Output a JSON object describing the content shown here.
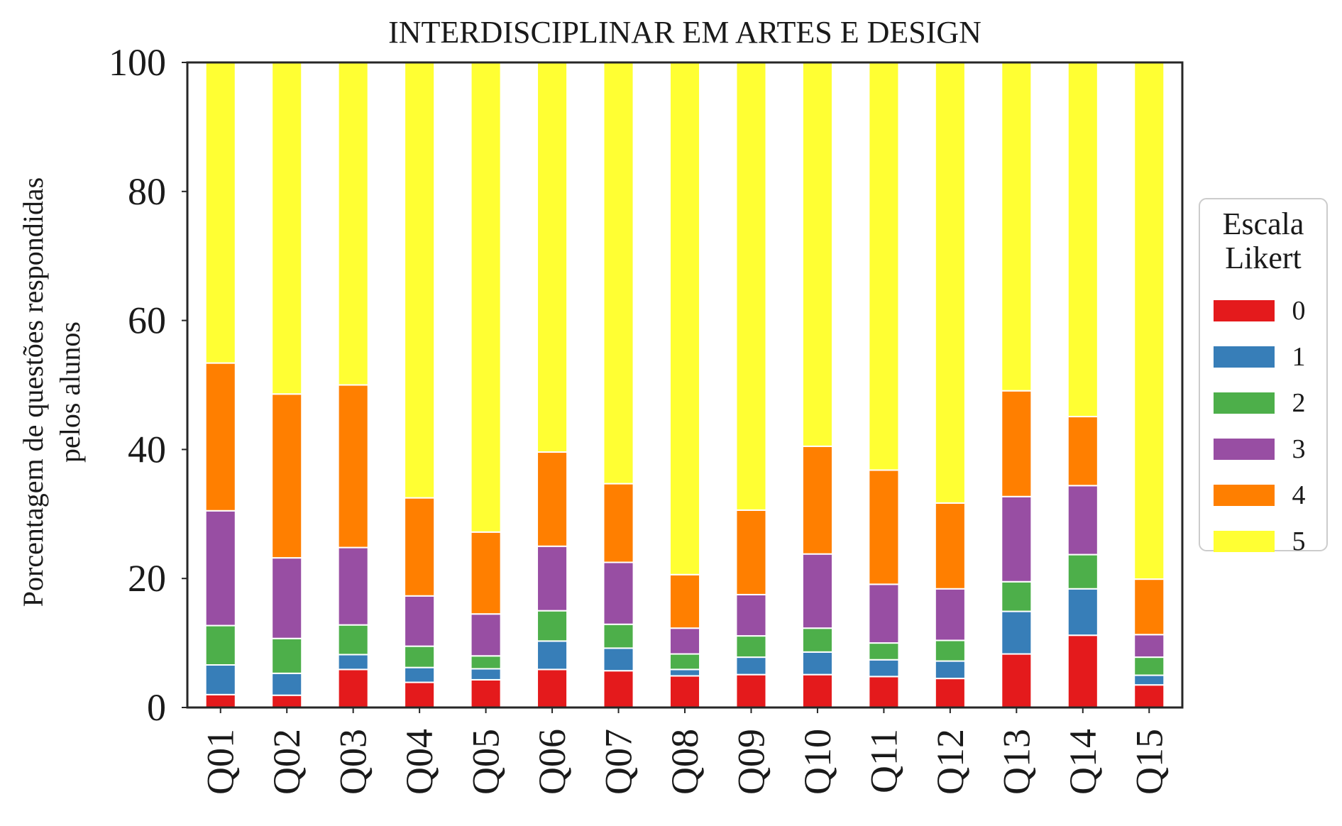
{
  "chart_data": {
    "type": "bar",
    "stacked": true,
    "title": "INTERDISCIPLINAR EM ARTES E DESIGN",
    "ylabel": [
      "Porcentagem de questões respondidas",
      "pelos alunos"
    ],
    "xlabel": "",
    "ylim": [
      0,
      100
    ],
    "yticks": [
      "0",
      "20",
      "40",
      "60",
      "80",
      "100"
    ],
    "grid": false,
    "legend": {
      "title": [
        "Escala",
        "Likert"
      ],
      "placement": "center-right outside"
    },
    "categories": [
      "Q01",
      "Q02",
      "Q03",
      "Q04",
      "Q05",
      "Q06",
      "Q07",
      "Q08",
      "Q09",
      "Q10",
      "Q11",
      "Q12",
      "Q13",
      "Q14",
      "Q15"
    ],
    "series": [
      {
        "name": "0",
        "color": "#e41a1c",
        "values": [
          2.0,
          1.9,
          5.9,
          3.9,
          4.3,
          5.9,
          5.7,
          4.9,
          5.1,
          5.1,
          4.8,
          4.5,
          8.3,
          11.2,
          3.5
        ]
      },
      {
        "name": "1",
        "color": "#377eb8",
        "values": [
          4.6,
          3.4,
          2.3,
          2.3,
          1.7,
          4.4,
          3.5,
          1.0,
          2.7,
          3.5,
          2.6,
          2.7,
          6.6,
          7.2,
          1.5
        ]
      },
      {
        "name": "2",
        "color": "#4daf4a",
        "values": [
          6.1,
          5.4,
          4.6,
          3.3,
          2.0,
          4.7,
          3.7,
          2.4,
          3.3,
          3.7,
          2.6,
          3.2,
          4.6,
          5.3,
          2.8
        ]
      },
      {
        "name": "3",
        "color": "#984ea3",
        "values": [
          17.8,
          12.5,
          12.0,
          7.8,
          6.5,
          10.0,
          9.6,
          4.0,
          6.4,
          11.5,
          9.1,
          8.0,
          13.2,
          10.7,
          3.5
        ]
      },
      {
        "name": "4",
        "color": "#ff7f00",
        "values": [
          22.9,
          25.4,
          25.2,
          15.2,
          12.7,
          14.6,
          12.2,
          8.3,
          13.1,
          16.7,
          17.7,
          13.3,
          16.4,
          10.7,
          8.6
        ]
      },
      {
        "name": "5",
        "color": "#ffff33",
        "values": [
          46.6,
          51.4,
          50.0,
          67.5,
          72.8,
          60.4,
          65.3,
          79.4,
          69.4,
          59.5,
          63.2,
          68.3,
          50.9,
          54.9,
          80.1
        ]
      }
    ]
  }
}
